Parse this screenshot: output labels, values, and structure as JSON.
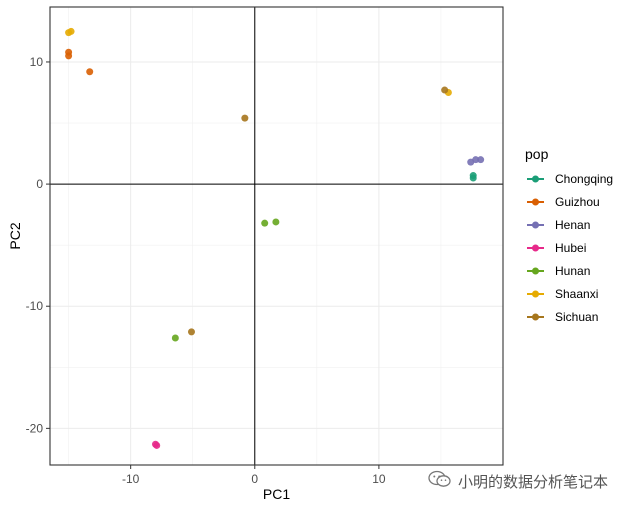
{
  "chart_data": {
    "type": "scatter",
    "title": "",
    "xlabel": "PC1",
    "ylabel": "PC2",
    "xlim": [
      -16.5,
      20.0
    ],
    "ylim": [
      -23.0,
      14.5
    ],
    "xticks": [
      -10,
      0,
      10
    ],
    "yticks": [
      -20,
      -10,
      0,
      10
    ],
    "grid": true,
    "reference_lines": {
      "x": 0,
      "y": 0
    },
    "legend_title": "pop",
    "legend_position": "right",
    "series": [
      {
        "name": "Chongqing",
        "color": "#1B9E77",
        "points": [
          [
            17.6,
            0.7
          ],
          [
            17.6,
            0.5
          ]
        ]
      },
      {
        "name": "Guizhou",
        "color": "#D95F02",
        "points": [
          [
            -15.0,
            10.8
          ],
          [
            -15.0,
            10.5
          ],
          [
            -13.3,
            9.2
          ]
        ]
      },
      {
        "name": "Henan",
        "color": "#7570B3",
        "points": [
          [
            17.4,
            1.8
          ],
          [
            17.8,
            2.0
          ],
          [
            18.2,
            2.0
          ]
        ]
      },
      {
        "name": "Hubei",
        "color": "#E7298A",
        "points": [
          [
            -8.0,
            -21.3
          ],
          [
            -7.9,
            -21.4
          ]
        ]
      },
      {
        "name": "Hunan",
        "color": "#66A61E",
        "points": [
          [
            0.8,
            -3.2
          ],
          [
            1.7,
            -3.1
          ],
          [
            -6.4,
            -12.6
          ]
        ]
      },
      {
        "name": "Shaanxi",
        "color": "#E6AB02",
        "points": [
          [
            -15.0,
            12.4
          ],
          [
            -14.8,
            12.5
          ],
          [
            15.6,
            7.5
          ]
        ]
      },
      {
        "name": "Sichuan",
        "color": "#A6761D",
        "points": [
          [
            -0.8,
            5.4
          ],
          [
            15.3,
            7.7
          ],
          [
            -5.1,
            -12.1
          ]
        ]
      }
    ]
  },
  "watermark": {
    "text": "小明的数据分析笔记本",
    "icon": "wechat-icon"
  }
}
